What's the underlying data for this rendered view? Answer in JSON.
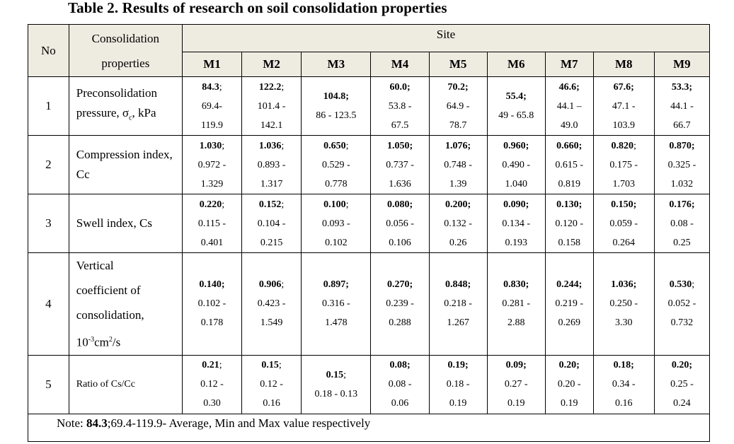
{
  "title": "Table 2. Results of research on soil consolidation properties",
  "header": {
    "no": "No",
    "property": "Consolidation properties",
    "site": "Site",
    "sites": [
      "M1",
      "M2",
      "M3",
      "M4",
      "M5",
      "M6",
      "M7",
      "M8",
      "M9"
    ]
  },
  "rows": [
    {
      "no": "1",
      "property_main": "Preconsolidation pressure, σ",
      "property_sub": "c",
      "property_tail": ", kPa",
      "cells": [
        {
          "avg": "84.3",
          "sep": ";",
          "range": "69.4- 119.9"
        },
        {
          "avg": "122.2",
          "sep": ";",
          "range": "101.4 - 142.1"
        },
        {
          "avg": "104.8;",
          "sep": "",
          "range": "86 - 123.5"
        },
        {
          "avg": "60.0;",
          "sep": "",
          "range": "53.8 - 67.5"
        },
        {
          "avg": "70.2;",
          "sep": "",
          "range": "64.9 - 78.7"
        },
        {
          "avg": "55.4;",
          "sep": "",
          "range": "49 - 65.8"
        },
        {
          "avg": "46.6;",
          "sep": "",
          "range": "44.1 – 49.0"
        },
        {
          "avg": "67.6;",
          "sep": "",
          "range": "47.1 - 103.9"
        },
        {
          "avg": "53.3;",
          "sep": "",
          "range": "44.1 - 66.7"
        }
      ]
    },
    {
      "no": "2",
      "property": "Compression index, Cc",
      "cells": [
        {
          "avg": "1.030",
          "sep": ";",
          "range": "0.972 - 1.329"
        },
        {
          "avg": "1.036",
          "sep": ";",
          "range": "0.893 - 1.317"
        },
        {
          "avg": "0.650",
          "sep": ";",
          "range": "0.529 - 0.778"
        },
        {
          "avg": "1.050;",
          "sep": "",
          "range": "0.737 - 1.636"
        },
        {
          "avg": "1.076;",
          "sep": "",
          "range": "0.748 - 1.39"
        },
        {
          "avg": "0.960;",
          "sep": "",
          "range": "0.490 - 1.040"
        },
        {
          "avg": "0.660;",
          "sep": "",
          "range": "0.615 - 0.819"
        },
        {
          "avg": "0.820",
          "sep": ";",
          "range": "0.175 - 1.703"
        },
        {
          "avg": "0.870;",
          "sep": "",
          "range": "0.325 - 1.032"
        }
      ]
    },
    {
      "no": "3",
      "property": "Swell index, Cs",
      "cells": [
        {
          "avg": "0.220",
          "sep": ";",
          "range": "0.115 - 0.401"
        },
        {
          "avg": "0.152",
          "sep": ";",
          "range": "0.104 - 0.215"
        },
        {
          "avg": "0.100",
          "sep": ";",
          "range": "0.093 - 0.102"
        },
        {
          "avg": "0.080;",
          "sep": "",
          "range": "0.056 - 0.106"
        },
        {
          "avg": "0.200;",
          "sep": "",
          "range": "0.132 - 0.26"
        },
        {
          "avg": "0.090;",
          "sep": "",
          "range": "0.134 - 0.193"
        },
        {
          "avg": "0.130;",
          "sep": "",
          "range": "0.120 - 0.158"
        },
        {
          "avg": "0.150;",
          "sep": "",
          "range": "0.059 - 0.264"
        },
        {
          "avg": "0.176;",
          "sep": "",
          "range": "0.08 - 0.25"
        }
      ]
    },
    {
      "no": "4",
      "property_lines": [
        "Vertical",
        "coefficient of",
        "consolidation,"
      ],
      "unit_base": "10",
      "unit_exp": "-3",
      "unit_mid": "cm",
      "unit_exp2": "2",
      "unit_tail": "/s",
      "cells": [
        {
          "avg": "0.140;",
          "sep": "",
          "range": "0.102 - 0.178"
        },
        {
          "avg": "0.906",
          "sep": ";",
          "range": "0.423 - 1.549"
        },
        {
          "avg": "0.897;",
          "sep": "",
          "range": "0.316 - 1.478"
        },
        {
          "avg": "0.270;",
          "sep": "",
          "range": "0.239 - 0.288"
        },
        {
          "avg": "0.848;",
          "sep": "",
          "range": "0.218 - 1.267"
        },
        {
          "avg": "0.830;",
          "sep": "",
          "range": "0.281 - 2.88"
        },
        {
          "avg": "0.244;",
          "sep": "",
          "range": "0.219 - 0.269"
        },
        {
          "avg": "1.036;",
          "sep": "",
          "range": "0.250 - 3.30"
        },
        {
          "avg": "0.530",
          "sep": ";",
          "range": "0.052 - 0.732"
        }
      ]
    },
    {
      "no": "5",
      "property": "Ratio of Cs/Cc",
      "cells": [
        {
          "avg": "0.21",
          "sep": ";",
          "range": "0.12 - 0.30"
        },
        {
          "avg": "0.15",
          "sep": ";",
          "range": "0.12 - 0.16"
        },
        {
          "avg": "0.15",
          "sep": ";",
          "range": "0.18 - 0.13"
        },
        {
          "avg": "0.08;",
          "sep": "",
          "range": "0.08 - 0.06"
        },
        {
          "avg": "0.19;",
          "sep": "",
          "range": "0.18 - 0.19"
        },
        {
          "avg": "0.09;",
          "sep": "",
          "range": "0.27 - 0.19"
        },
        {
          "avg": "0.20;",
          "sep": "",
          "range": "0.20 - 0.19"
        },
        {
          "avg": "0.18;",
          "sep": "",
          "range": "0.34 - 0.16"
        },
        {
          "avg": "0.20;",
          "sep": "",
          "range": "0.25 - 0.24"
        }
      ]
    }
  ],
  "note": {
    "prefix": "Note: ",
    "bold": "84.3",
    "rest": ";69.4-119.9- Average, Min and Max value respectively"
  }
}
